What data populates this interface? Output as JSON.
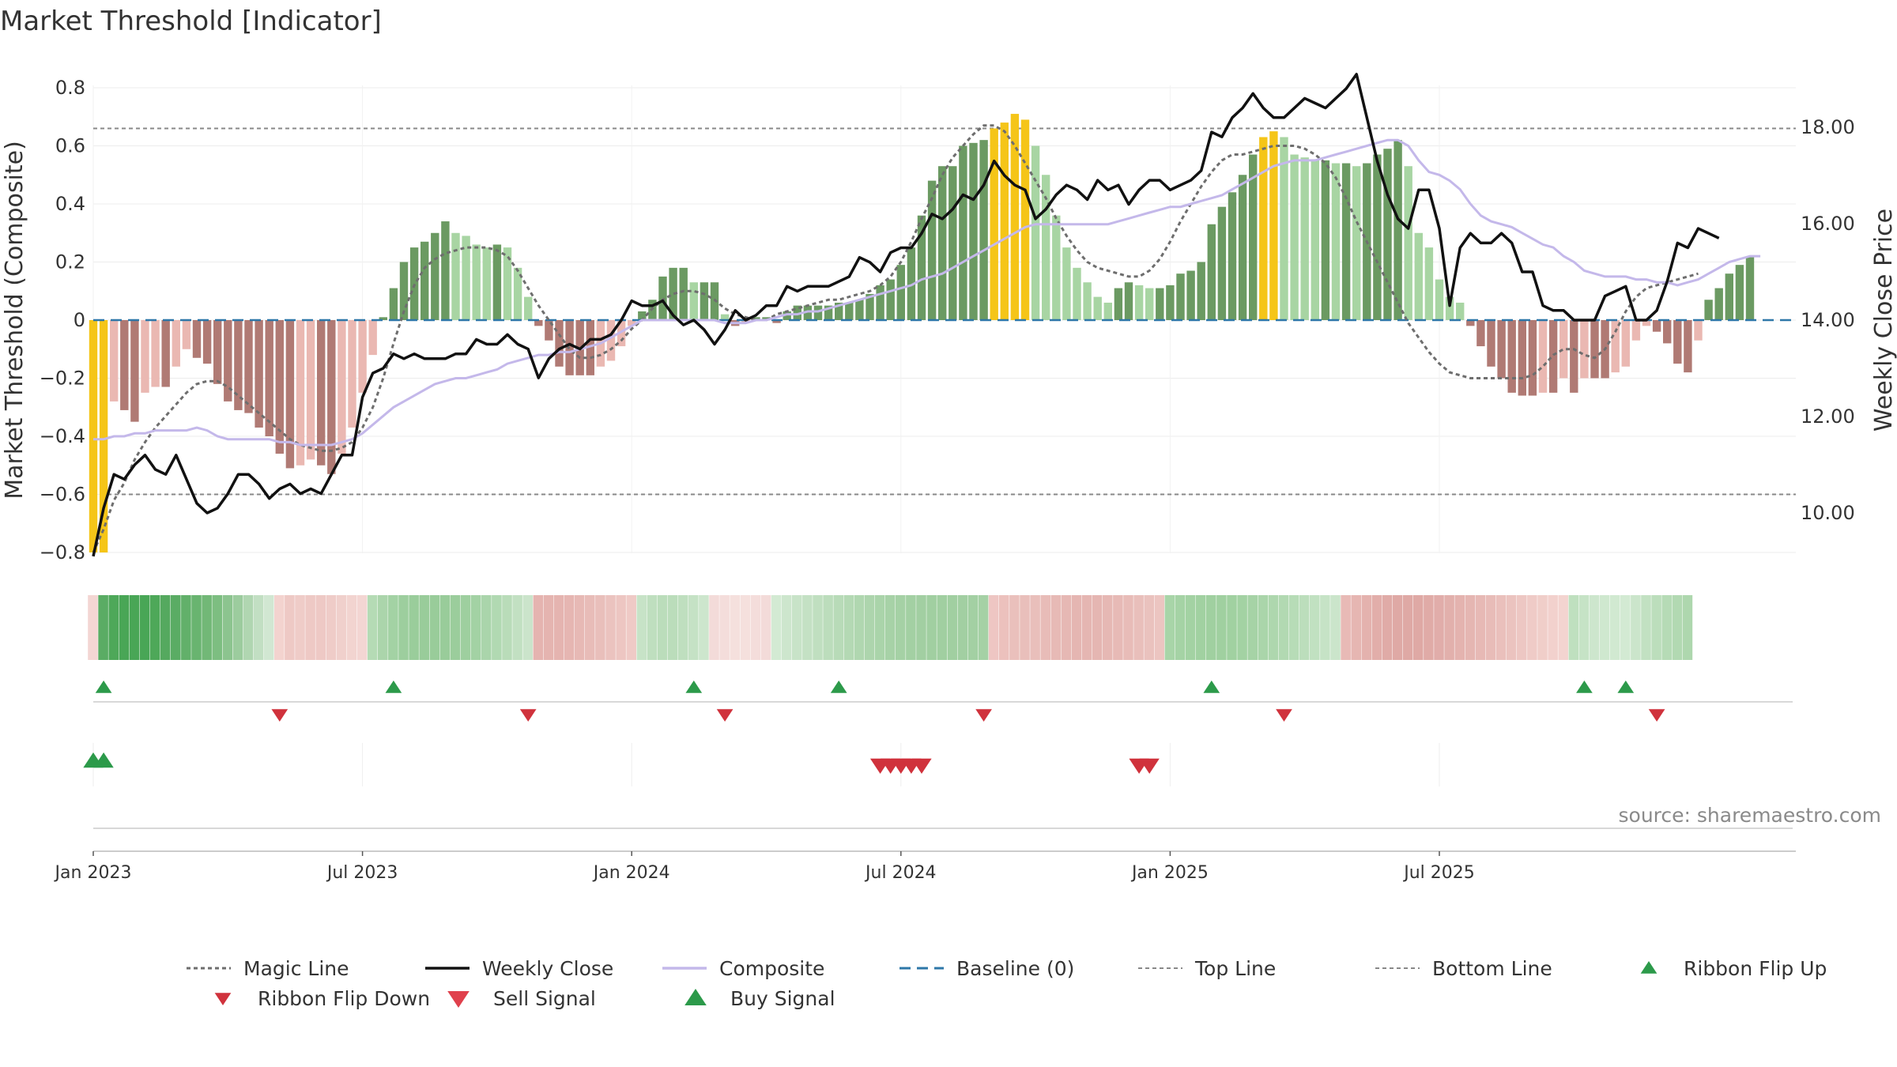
{
  "chart_data": {
    "type": "bar",
    "title": "Market Threshold [Indicator]",
    "ylabel_left": "Market Threshold (Composite)",
    "ylabel_right": "Weekly Close Price",
    "source": "source: sharemaestro.com",
    "ylim_left": [
      -0.85,
      0.82
    ],
    "ylim_right": [
      9.0,
      18.9
    ],
    "yticks_left": [
      {
        "v": 0.8,
        "label": "0.8"
      },
      {
        "v": 0.6,
        "label": "0.6"
      },
      {
        "v": 0.4,
        "label": "0.4"
      },
      {
        "v": 0.2,
        "label": "0.2"
      },
      {
        "v": 0,
        "label": "0"
      },
      {
        "v": -0.2,
        "label": "−0.2"
      },
      {
        "v": -0.4,
        "label": "−0.4"
      },
      {
        "v": -0.6,
        "label": "−0.6"
      },
      {
        "v": -0.8,
        "label": "−0.8"
      }
    ],
    "yticks_right": [
      {
        "v": 18,
        "label": "18.00"
      },
      {
        "v": 16,
        "label": "16.00"
      },
      {
        "v": 14,
        "label": "14.00"
      },
      {
        "v": 12,
        "label": "12.00"
      },
      {
        "v": 10,
        "label": "10.00"
      }
    ],
    "xticks": [
      {
        "week": 1,
        "label": "Jan 2023"
      },
      {
        "week": 27,
        "label": "Jul 2023"
      },
      {
        "week": 53,
        "label": "Jan 2024"
      },
      {
        "week": 79,
        "label": "Jul 2024"
      },
      {
        "week": 105,
        "label": "Jan 2025"
      },
      {
        "week": 131,
        "label": "Jul 2025"
      }
    ],
    "top_line": 0.66,
    "bottom_line": -0.6,
    "baseline": 0,
    "colors": {
      "highlight": "#f5c518",
      "pos_strong": "#6b9a62",
      "pos_weak": "#a8d5a3",
      "neg_strong": "#b07a74",
      "neg_weak": "#eab8b2",
      "weekly_close": "#111111",
      "composite": "#c4b8ea",
      "magic": "#6e6e6e",
      "baseline": "#2e77a8",
      "threshold": "#888888",
      "buy": "#2c9a4a",
      "sell": "#d0323c"
    },
    "composite_bars": [
      -0.8,
      -0.8,
      -0.28,
      -0.31,
      -0.35,
      -0.25,
      -0.23,
      -0.23,
      -0.16,
      -0.1,
      -0.13,
      -0.15,
      -0.22,
      -0.28,
      -0.31,
      -0.32,
      -0.37,
      -0.4,
      -0.46,
      -0.51,
      -0.5,
      -0.48,
      -0.5,
      -0.53,
      -0.46,
      -0.37,
      -0.25,
      -0.12,
      0.01,
      0.11,
      0.2,
      0.25,
      0.27,
      0.3,
      0.34,
      0.3,
      0.29,
      0.26,
      0.25,
      0.26,
      0.25,
      0.18,
      0.08,
      -0.02,
      -0.07,
      -0.16,
      -0.19,
      -0.19,
      -0.19,
      -0.16,
      -0.14,
      -0.09,
      -0.02,
      0.03,
      0.07,
      0.15,
      0.18,
      0.18,
      0.13,
      0.13,
      0.13,
      0.02,
      -0.02,
      -0.01,
      0.01,
      0.01,
      -0.01,
      0.03,
      0.05,
      0.05,
      0.05,
      0.05,
      0.06,
      0.06,
      0.07,
      0.09,
      0.12,
      0.14,
      0.19,
      0.25,
      0.36,
      0.48,
      0.53,
      0.53,
      0.6,
      0.61,
      0.62,
      0.66,
      0.68,
      0.71,
      0.69,
      0.6,
      0.5,
      0.36,
      0.25,
      0.18,
      0.13,
      0.08,
      0.06,
      0.11,
      0.13,
      0.12,
      0.11,
      0.11,
      0.12,
      0.16,
      0.17,
      0.2,
      0.33,
      0.39,
      0.44,
      0.5,
      0.57,
      0.63,
      0.65,
      0.63,
      0.57,
      0.56,
      0.55,
      0.55,
      0.54,
      0.54,
      0.53,
      0.54,
      0.57,
      0.59,
      0.62,
      0.53,
      0.3,
      0.25,
      0.14,
      0.08,
      0.06,
      -0.02,
      -0.09,
      -0.16,
      -0.2,
      -0.25,
      -0.26,
      -0.26,
      -0.25,
      -0.25,
      -0.2,
      -0.25,
      -0.2,
      -0.2,
      -0.2,
      -0.18,
      -0.16,
      -0.07,
      -0.02,
      -0.04,
      -0.08,
      -0.15,
      -0.18,
      -0.07,
      0.07,
      0.11,
      0.16,
      0.19,
      0.22
    ],
    "weekly_close": [
      9.1,
      10.1,
      10.8,
      10.7,
      11.0,
      11.2,
      10.9,
      10.8,
      11.2,
      10.7,
      10.2,
      10.0,
      10.1,
      10.4,
      10.8,
      10.8,
      10.6,
      10.3,
      10.5,
      10.6,
      10.4,
      10.5,
      10.4,
      10.8,
      11.2,
      11.2,
      12.4,
      12.9,
      13.0,
      13.3,
      13.2,
      13.3,
      13.2,
      13.2,
      13.2,
      13.3,
      13.3,
      13.6,
      13.5,
      13.5,
      13.7,
      13.5,
      13.4,
      12.8,
      13.2,
      13.4,
      13.5,
      13.4,
      13.6,
      13.6,
      13.7,
      14.0,
      14.4,
      14.3,
      14.3,
      14.4,
      14.1,
      13.9,
      14.0,
      13.8,
      13.5,
      13.8,
      14.2,
      14.0,
      14.1,
      14.3,
      14.3,
      14.7,
      14.6,
      14.7,
      14.7,
      14.7,
      14.8,
      14.9,
      15.3,
      15.2,
      15.0,
      15.4,
      15.5,
      15.5,
      15.8,
      16.2,
      16.1,
      16.3,
      16.6,
      16.5,
      16.8,
      17.3,
      17.0,
      16.8,
      16.7,
      16.1,
      16.3,
      16.6,
      16.8,
      16.7,
      16.5,
      16.9,
      16.7,
      16.8,
      16.4,
      16.7,
      16.9,
      16.9,
      16.7,
      16.8,
      16.9,
      17.1,
      17.9,
      17.8,
      18.2,
      18.4,
      18.7,
      18.4,
      18.2,
      18.2,
      18.4,
      18.6,
      18.5,
      18.4,
      18.6,
      18.8,
      19.1,
      18.2,
      17.3,
      16.6,
      16.1,
      15.9,
      16.7,
      16.7,
      15.9,
      14.3,
      15.5,
      15.8,
      15.6,
      15.6,
      15.8,
      15.6,
      15.0,
      15.0,
      14.3,
      14.2,
      14.2,
      14.0,
      14.0,
      14.0,
      14.5,
      14.6,
      14.7,
      14.0,
      14.0,
      14.2,
      14.8,
      15.6,
      15.5,
      15.9,
      15.8,
      15.7
    ],
    "composite_line": [
      -0.41,
      -0.41,
      -0.4,
      -0.4,
      -0.39,
      -0.39,
      -0.38,
      -0.38,
      -0.38,
      -0.38,
      -0.37,
      -0.38,
      -0.4,
      -0.41,
      -0.41,
      -0.41,
      -0.41,
      -0.41,
      -0.42,
      -0.42,
      -0.43,
      -0.43,
      -0.43,
      -0.43,
      -0.42,
      -0.41,
      -0.39,
      -0.36,
      -0.33,
      -0.3,
      -0.28,
      -0.26,
      -0.24,
      -0.22,
      -0.21,
      -0.2,
      -0.2,
      -0.19,
      -0.18,
      -0.17,
      -0.15,
      -0.14,
      -0.13,
      -0.12,
      -0.12,
      -0.11,
      -0.11,
      -0.1,
      -0.09,
      -0.08,
      -0.06,
      -0.04,
      -0.02,
      0.0,
      0.0,
      0.0,
      0.0,
      0.0,
      0.0,
      0.0,
      0.0,
      -0.01,
      -0.01,
      -0.01,
      0.0,
      0.0,
      0.01,
      0.02,
      0.02,
      0.03,
      0.03,
      0.04,
      0.05,
      0.06,
      0.07,
      0.08,
      0.09,
      0.1,
      0.11,
      0.12,
      0.14,
      0.15,
      0.16,
      0.18,
      0.2,
      0.22,
      0.24,
      0.26,
      0.28,
      0.3,
      0.32,
      0.33,
      0.33,
      0.33,
      0.33,
      0.33,
      0.33,
      0.33,
      0.33,
      0.34,
      0.35,
      0.36,
      0.37,
      0.38,
      0.39,
      0.39,
      0.4,
      0.41,
      0.42,
      0.43,
      0.45,
      0.47,
      0.49,
      0.51,
      0.53,
      0.54,
      0.55,
      0.55,
      0.55,
      0.56,
      0.57,
      0.58,
      0.59,
      0.6,
      0.61,
      0.62,
      0.62,
      0.6,
      0.55,
      0.51,
      0.5,
      0.48,
      0.45,
      0.4,
      0.36,
      0.34,
      0.33,
      0.32,
      0.3,
      0.28,
      0.26,
      0.25,
      0.22,
      0.2,
      0.17,
      0.16,
      0.15,
      0.15,
      0.15,
      0.14,
      0.14,
      0.13,
      0.13,
      0.12,
      0.13,
      0.14,
      0.16,
      0.18,
      0.2,
      0.21,
      0.22,
      0.22
    ],
    "magic_line": [
      -0.8,
      -0.72,
      -0.62,
      -0.56,
      -0.48,
      -0.42,
      -0.37,
      -0.33,
      -0.29,
      -0.25,
      -0.22,
      -0.21,
      -0.21,
      -0.23,
      -0.26,
      -0.29,
      -0.32,
      -0.35,
      -0.38,
      -0.41,
      -0.43,
      -0.44,
      -0.45,
      -0.45,
      -0.44,
      -0.42,
      -0.37,
      -0.3,
      -0.2,
      -0.08,
      0.03,
      0.12,
      0.18,
      0.21,
      0.23,
      0.24,
      0.25,
      0.25,
      0.25,
      0.24,
      0.22,
      0.17,
      0.11,
      0.05,
      0.0,
      -0.05,
      -0.1,
      -0.13,
      -0.13,
      -0.12,
      -0.1,
      -0.07,
      -0.03,
      0.0,
      0.04,
      0.07,
      0.09,
      0.1,
      0.1,
      0.09,
      0.07,
      0.04,
      0.02,
      0.01,
      0.0,
      0.0,
      0.02,
      0.03,
      0.04,
      0.05,
      0.06,
      0.07,
      0.07,
      0.08,
      0.09,
      0.1,
      0.12,
      0.15,
      0.2,
      0.27,
      0.35,
      0.42,
      0.5,
      0.56,
      0.6,
      0.64,
      0.67,
      0.67,
      0.65,
      0.6,
      0.54,
      0.48,
      0.42,
      0.35,
      0.29,
      0.24,
      0.2,
      0.18,
      0.17,
      0.16,
      0.15,
      0.15,
      0.17,
      0.21,
      0.27,
      0.34,
      0.4,
      0.46,
      0.51,
      0.55,
      0.57,
      0.57,
      0.58,
      0.59,
      0.6,
      0.6,
      0.6,
      0.59,
      0.57,
      0.54,
      0.49,
      0.42,
      0.34,
      0.27,
      0.2,
      0.13,
      0.06,
      -0.01,
      -0.06,
      -0.11,
      -0.15,
      -0.18,
      -0.19,
      -0.2,
      -0.2,
      -0.2,
      -0.2,
      -0.2,
      -0.2,
      -0.19,
      -0.16,
      -0.12,
      -0.1,
      -0.1,
      -0.12,
      -0.13,
      -0.1,
      -0.04,
      0.03,
      0.08,
      0.11,
      0.12,
      0.13,
      0.14,
      0.15,
      0.16
    ],
    "highlight_weeks": [
      1,
      2,
      88,
      89,
      90,
      91,
      114,
      115
    ],
    "ribbon_colors": [
      "#f3d6d3",
      "#5aac64",
      "#4ea859",
      "#49a656",
      "#49a656",
      "#49a656",
      "#4ea859",
      "#55a95f",
      "#5aac64",
      "#62b06a",
      "#69b470",
      "#72b877",
      "#7dbe81",
      "#8cc48f",
      "#9ccc9e",
      "#b0d6b1",
      "#c2dfc3",
      "#d1e7d2",
      "#f3d3cf",
      "#eec9c5",
      "#efccc8",
      "#eec9c5",
      "#eec9c5",
      "#efccc8",
      "#f0d0cc",
      "#f2d4d0",
      "#f3d6d3",
      "#b5dbb5",
      "#abd5ab",
      "#a3d2a4",
      "#9dce9e",
      "#9acd9b",
      "#99cc9a",
      "#99cc9a",
      "#99cc9a",
      "#9bcd9c",
      "#9ecf9f",
      "#a3d2a4",
      "#aad5ab",
      "#b1d9b2",
      "#b9dcb9",
      "#c2e0c2",
      "#cbe4cb",
      "#e5b4b0",
      "#e5b4b0",
      "#e5b4b0",
      "#e6b6b2",
      "#e7b9b5",
      "#e8bcb8",
      "#e9bfbb",
      "#ebc3bf",
      "#edc6c2",
      "#efcac6",
      "#c7e3c7",
      "#bfdfbf",
      "#bbddbb",
      "#bbddbb",
      "#bfdfbf",
      "#c5e2c5",
      "#cde6cd",
      "#f3dbd9",
      "#f4dddb",
      "#f5e0dd",
      "#f5e0dd",
      "#f4dddb",
      "#f3dbd9",
      "#d3ead3",
      "#cde6cd",
      "#c8e3c8",
      "#c4e1c4",
      "#c0dfc0",
      "#bcddbc",
      "#b8dbb8",
      "#b4d9b4",
      "#b0d7b0",
      "#add5ad",
      "#aad4aa",
      "#a7d2a7",
      "#a5d1a5",
      "#a3d0a3",
      "#a2cfa2",
      "#a1cfa1",
      "#a1cfa1",
      "#a1cfa1",
      "#a2cfa2",
      "#a3d0a3",
      "#a5d1a5",
      "#eec6c3",
      "#ecc1bd",
      "#eac0bc",
      "#e9bfbb",
      "#e9bfbb",
      "#e8bcb8",
      "#e7bab6",
      "#e6b8b4",
      "#e5b6b2",
      "#e5b6b2",
      "#e5b6b2",
      "#e6b8b4",
      "#e7bab6",
      "#e8bcb8",
      "#e9bfbb",
      "#eac2be",
      "#ecc5c1",
      "#a8d5a8",
      "#a5d3a5",
      "#a3d2a3",
      "#a1d1a1",
      "#a0d0a0",
      "#a0d0a0",
      "#a1d1a1",
      "#a3d2a3",
      "#a6d3a6",
      "#aad5aa",
      "#aed7ae",
      "#b2d9b2",
      "#b7dcb7",
      "#bcdebc",
      "#c1e1c1",
      "#c6e3c6",
      "#cbe5cb",
      "#e8bab6",
      "#e6b6b2",
      "#e4b2ae",
      "#e2aeaa",
      "#e0aba7",
      "#dfa9a5",
      "#dfa9a5",
      "#dfa9a5",
      "#e0aba7",
      "#e1adaa",
      "#e2b0ac",
      "#e4b3af",
      "#e5b6b2",
      "#e7b9b5",
      "#e8bcb8",
      "#eac0bc",
      "#ebc3bf",
      "#edc7c3",
      "#efcbc7",
      "#f0cec9",
      "#f2d1cd",
      "#f3d4d0",
      "#bfe0bf",
      "#c6e3c6",
      "#cde6cd",
      "#cfe8cf",
      "#d1e9d1",
      "#d3ead3",
      "#cbe5cb",
      "#c2e1c2",
      "#bcdebc",
      "#b6dbb6",
      "#b2d9b2",
      "#aed7ae"
    ],
    "ribbon_flip_up_weeks": [
      2,
      30,
      59,
      73,
      109,
      145,
      149
    ],
    "ribbon_flip_down_weeks": [
      19,
      43,
      62,
      87,
      116,
      152
    ],
    "buy_signal_weeks": [
      1,
      2
    ],
    "sell_signal_weeks": [
      77,
      78,
      79,
      80,
      81,
      102,
      103
    ]
  },
  "legend": [
    {
      "label": "Magic Line",
      "kind": "dotted",
      "color": "#6e6e6e"
    },
    {
      "label": "Weekly Close",
      "kind": "solid",
      "color": "#111111"
    },
    {
      "label": "Composite",
      "kind": "solid",
      "color": "#c4b8ea"
    },
    {
      "label": "Baseline (0)",
      "kind": "dashed",
      "color": "#2e77a8"
    },
    {
      "label": "Top Line",
      "kind": "dashed-thin",
      "color": "#888888"
    },
    {
      "label": "Bottom Line",
      "kind": "dashed-thin",
      "color": "#888888"
    },
    {
      "label": "Ribbon Flip Up",
      "kind": "tri-up",
      "color": "#2c9a4a"
    },
    {
      "label": "Ribbon Flip Down",
      "kind": "tri-down",
      "color": "#d0323c"
    },
    {
      "label": "Sell Signal",
      "kind": "tri-down-big",
      "color": "#e0404c"
    },
    {
      "label": "Buy Signal",
      "kind": "tri-up-big",
      "color": "#2c9a4a"
    }
  ]
}
